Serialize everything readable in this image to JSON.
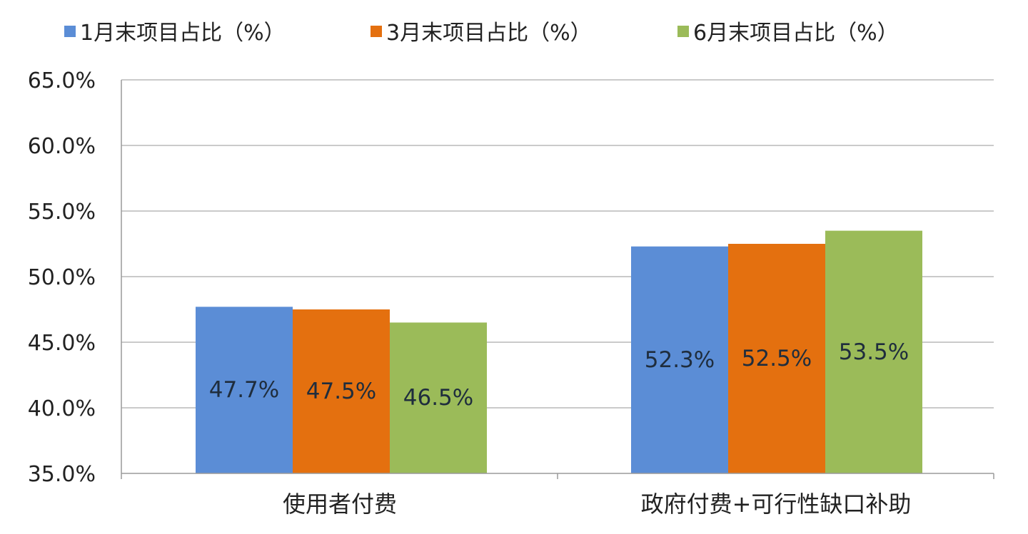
{
  "chart_data": {
    "type": "bar",
    "categories": [
      "使用者付费",
      "政府付费+可行性缺口补助"
    ],
    "series": [
      {
        "name": "1月末项目占比（%）",
        "color": "#5b8dd6",
        "values": [
          47.7,
          52.3
        ],
        "labels": [
          "47.7%",
          "52.3%"
        ]
      },
      {
        "name": "3月末项目占比（%）",
        "color": "#e4700f",
        "values": [
          47.5,
          52.5
        ],
        "labels": [
          "47.5%",
          "52.5%"
        ]
      },
      {
        "name": "6月末项目占比（%）",
        "color": "#9bbb59",
        "values": [
          46.5,
          53.5
        ],
        "labels": [
          "46.5%",
          "53.5%"
        ]
      }
    ],
    "yticks": [
      "35.0%",
      "40.0%",
      "45.0%",
      "50.0%",
      "55.0%",
      "60.0%",
      "65.0%"
    ],
    "ylim": [
      35,
      65
    ],
    "ystep": 5,
    "title": "",
    "xlabel": "",
    "ylabel": "",
    "legend_position": "top",
    "grid": true,
    "gridline_color": "#b8b8b8",
    "label_color": "#1f2d3d"
  }
}
